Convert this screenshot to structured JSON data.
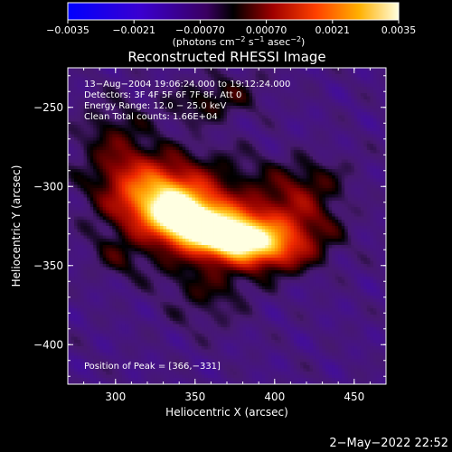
{
  "chart_data": {
    "type": "heatmap",
    "title": "Reconstructed RHESSI Image",
    "xlabel": "Heliocentric X (arcsec)",
    "ylabel": "Heliocentric Y (arcsec)",
    "xlim": [
      270,
      470
    ],
    "ylim": [
      -425,
      -225
    ],
    "x_ticks": [
      300,
      350,
      400,
      450
    ],
    "y_ticks": [
      -250,
      -300,
      -350,
      -400
    ],
    "x_tick_labels": [
      "300",
      "350",
      "400",
      "450"
    ],
    "y_tick_labels": [
      "−250",
      "−300",
      "−350",
      "−400"
    ],
    "colorbar": {
      "min": -0.0035,
      "max": 0.0035,
      "tick_labels": [
        "−0.0035",
        "−0.0021",
        "−0.00070",
        "0.00070",
        "0.0021",
        "0.0035"
      ],
      "label_prefix": "(photons cm",
      "label_sup1": "−2",
      "label_mid": " s",
      "label_sup2": "−1",
      "label_mid2": " asec",
      "label_sup3": "−2",
      "label_suffix": ")"
    },
    "annotations": [
      "13−Aug−2004 19:06:24.000 to 19:12:24.000",
      "Detectors: 3F 4F 5F 6F 7F 8F, Att 0",
      "Energy Range: 12.0 − 25.0 keV",
      "Clean     Total counts: 1.66E+04"
    ],
    "peak_text": "Position of Peak = [366,−331]",
    "source": {
      "peak_x": 366,
      "peak_y": -331,
      "peak_value": 0.0035
    },
    "footer_date": "2−May−2022 22:52"
  }
}
